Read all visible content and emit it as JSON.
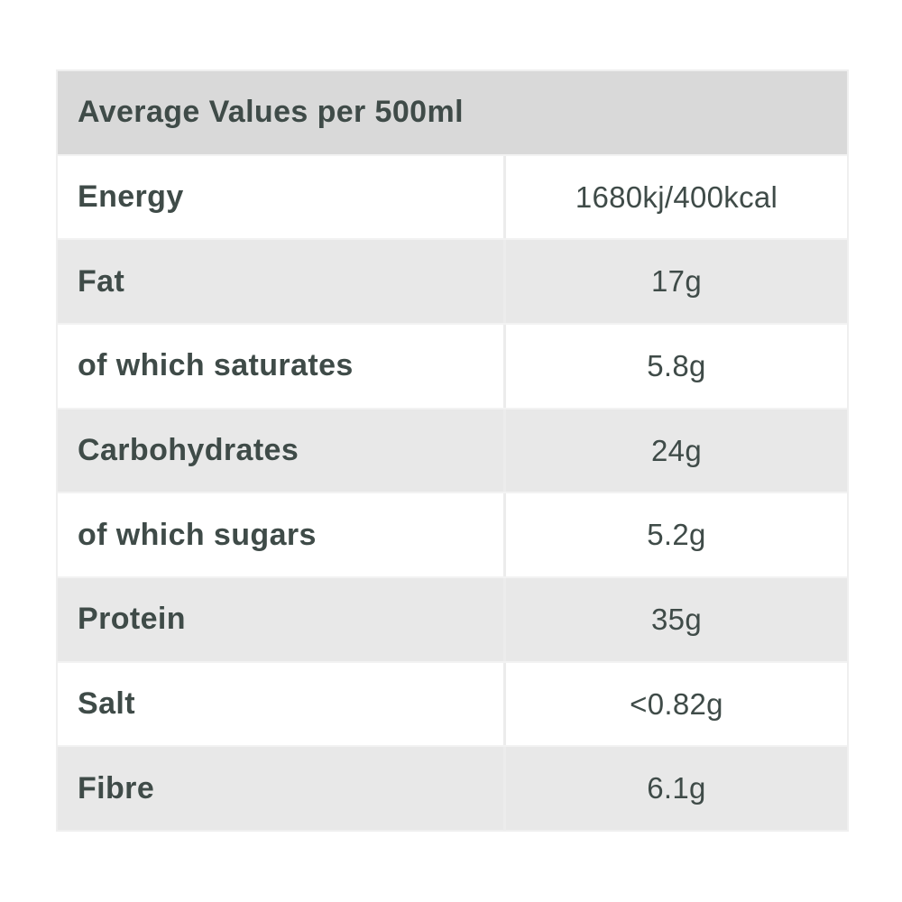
{
  "table": {
    "title": "Average Values per 500ml",
    "rows": [
      {
        "label": "Energy",
        "value": "1680kj/400kcal"
      },
      {
        "label": "Fat",
        "value": "17g"
      },
      {
        "label": "of which saturates",
        "value": "5.8g"
      },
      {
        "label": "Carbohydrates",
        "value": "24g"
      },
      {
        "label": "of which sugars",
        "value": "5.2g"
      },
      {
        "label": "Protein",
        "value": "35g"
      },
      {
        "label": "Salt",
        "value": "<0.82g"
      },
      {
        "label": "Fibre",
        "value": "6.1g"
      }
    ],
    "colors": {
      "header_bg": "#d9d9d9",
      "shaded_row_bg": "#e8e8e8",
      "plain_row_bg": "#ffffff",
      "divider": "#ececec",
      "text": "#3f4b48"
    }
  }
}
